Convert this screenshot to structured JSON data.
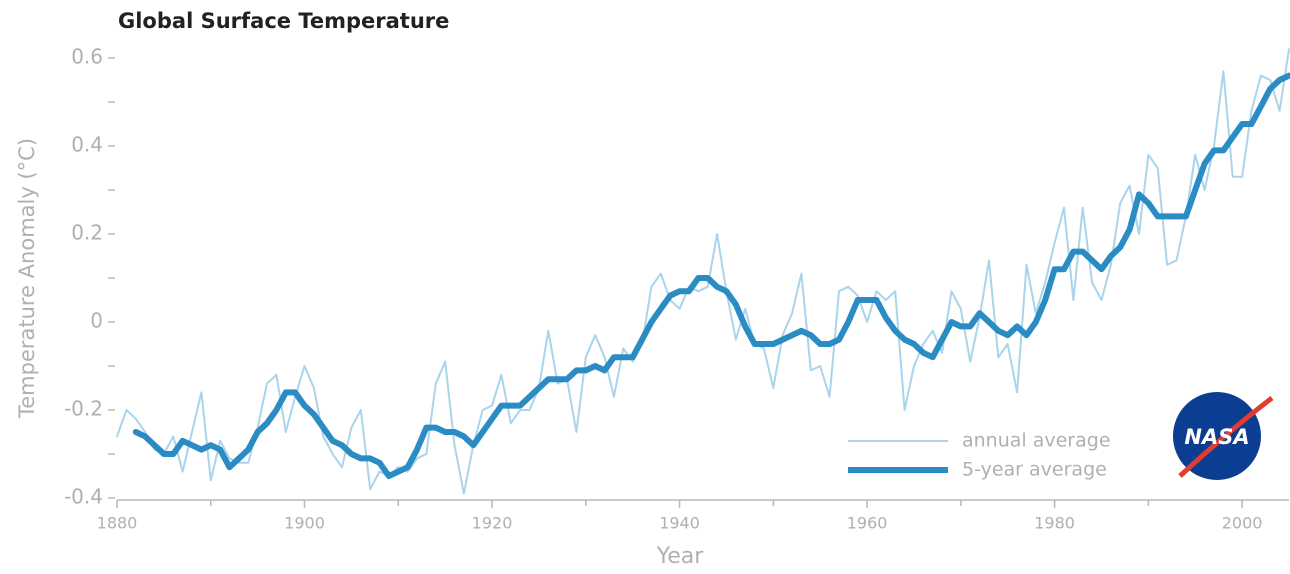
{
  "chart_data": {
    "type": "line",
    "title": "Global Surface Temperature",
    "xlabel": "Year",
    "ylabel": "Temperature Anomaly (°C)",
    "logo": "NASA",
    "xlim": [
      1880,
      2005
    ],
    "ylim": [
      -0.4,
      0.6
    ],
    "xticks": [
      1880,
      1900,
      1920,
      1940,
      1960,
      1980,
      2000
    ],
    "xticks_minor": [
      1890,
      1910,
      1930,
      1950,
      1970,
      1990
    ],
    "yticks": [
      -0.4,
      -0.2,
      0,
      0.2,
      0.4,
      0.6
    ],
    "yticks_minor": [
      -0.3,
      -0.1,
      0.1,
      0.3,
      0.5
    ],
    "legend": "lower right",
    "x": [
      1880,
      1881,
      1882,
      1883,
      1884,
      1885,
      1886,
      1887,
      1888,
      1889,
      1890,
      1891,
      1892,
      1893,
      1894,
      1895,
      1896,
      1897,
      1898,
      1899,
      1900,
      1901,
      1902,
      1903,
      1904,
      1905,
      1906,
      1907,
      1908,
      1909,
      1910,
      1911,
      1912,
      1913,
      1914,
      1915,
      1916,
      1917,
      1918,
      1919,
      1920,
      1921,
      1922,
      1923,
      1924,
      1925,
      1926,
      1927,
      1928,
      1929,
      1930,
      1931,
      1932,
      1933,
      1934,
      1935,
      1936,
      1937,
      1938,
      1939,
      1940,
      1941,
      1942,
      1943,
      1944,
      1945,
      1946,
      1947,
      1948,
      1949,
      1950,
      1951,
      1952,
      1953,
      1954,
      1955,
      1956,
      1957,
      1958,
      1959,
      1960,
      1961,
      1962,
      1963,
      1964,
      1965,
      1966,
      1967,
      1968,
      1969,
      1970,
      1971,
      1972,
      1973,
      1974,
      1975,
      1976,
      1977,
      1978,
      1979,
      1980,
      1981,
      1982,
      1983,
      1984,
      1985,
      1986,
      1987,
      1988,
      1989,
      1990,
      1991,
      1992,
      1993,
      1994,
      1995,
      1996,
      1997,
      1998,
      1999,
      2000,
      2001,
      2002,
      2003,
      2004,
      2005
    ],
    "series": [
      {
        "name": "annual average",
        "color": "#a9d4ec",
        "width": 2,
        "values": [
          -0.26,
          -0.2,
          -0.22,
          -0.25,
          -0.29,
          -0.3,
          -0.26,
          -0.34,
          -0.25,
          -0.16,
          -0.36,
          -0.27,
          -0.31,
          -0.32,
          -0.32,
          -0.24,
          -0.14,
          -0.12,
          -0.25,
          -0.17,
          -0.1,
          -0.15,
          -0.26,
          -0.3,
          -0.33,
          -0.24,
          -0.2,
          -0.38,
          -0.34,
          -0.35,
          -0.33,
          -0.34,
          -0.31,
          -0.3,
          -0.14,
          -0.09,
          -0.28,
          -0.39,
          -0.28,
          -0.2,
          -0.19,
          -0.12,
          -0.23,
          -0.2,
          -0.2,
          -0.15,
          -0.02,
          -0.14,
          -0.13,
          -0.25,
          -0.08,
          -0.03,
          -0.08,
          -0.17,
          -0.06,
          -0.09,
          -0.05,
          0.08,
          0.11,
          0.05,
          0.03,
          0.08,
          0.07,
          0.08,
          0.2,
          0.07,
          -0.04,
          0.03,
          -0.05,
          -0.06,
          -0.15,
          -0.03,
          0.02,
          0.11,
          -0.11,
          -0.1,
          -0.17,
          0.07,
          0.08,
          0.06,
          0.0,
          0.07,
          0.05,
          0.07,
          -0.2,
          -0.1,
          -0.05,
          -0.02,
          -0.07,
          0.07,
          0.03,
          -0.09,
          0.01,
          0.14,
          -0.08,
          -0.05,
          -0.16,
          0.13,
          0.02,
          0.09,
          0.18,
          0.26,
          0.05,
          0.26,
          0.09,
          0.05,
          0.13,
          0.27,
          0.31,
          0.2,
          0.38,
          0.35,
          0.13,
          0.14,
          0.24,
          0.38,
          0.3,
          0.4,
          0.57,
          0.33,
          0.33,
          0.48,
          0.56,
          0.55,
          0.48,
          0.62
        ]
      },
      {
        "name": "5-year average",
        "color": "#2b8cc4",
        "width": 6,
        "values": [
          null,
          null,
          -0.25,
          -0.26,
          -0.28,
          -0.3,
          -0.3,
          -0.27,
          -0.28,
          -0.29,
          -0.28,
          -0.29,
          -0.33,
          -0.31,
          -0.29,
          -0.25,
          -0.23,
          -0.2,
          -0.16,
          -0.16,
          -0.19,
          -0.21,
          -0.24,
          -0.27,
          -0.28,
          -0.3,
          -0.31,
          -0.31,
          -0.32,
          -0.35,
          -0.34,
          -0.33,
          -0.29,
          -0.24,
          -0.24,
          -0.25,
          -0.25,
          -0.26,
          -0.28,
          -0.25,
          -0.22,
          -0.19,
          -0.19,
          -0.19,
          -0.17,
          -0.15,
          -0.13,
          -0.13,
          -0.13,
          -0.11,
          -0.11,
          -0.1,
          -0.11,
          -0.08,
          -0.08,
          -0.08,
          -0.04,
          0.0,
          0.03,
          0.06,
          0.07,
          0.07,
          0.1,
          0.1,
          0.08,
          0.07,
          0.04,
          -0.01,
          -0.05,
          -0.05,
          -0.05,
          -0.04,
          -0.03,
          -0.02,
          -0.03,
          -0.05,
          -0.05,
          -0.04,
          0.0,
          0.05,
          0.05,
          0.05,
          0.01,
          -0.02,
          -0.04,
          -0.05,
          -0.07,
          -0.08,
          -0.04,
          0.0,
          -0.01,
          -0.01,
          0.02,
          0.0,
          -0.02,
          -0.03,
          -0.01,
          -0.03,
          0.0,
          0.05,
          0.12,
          0.12,
          0.16,
          0.16,
          0.14,
          0.12,
          0.15,
          0.17,
          0.21,
          0.29,
          0.27,
          0.24,
          0.24,
          0.24,
          0.24,
          0.3,
          0.36,
          0.39,
          0.39,
          0.42,
          0.45,
          0.45,
          0.49,
          0.53,
          0.55,
          0.56
        ]
      }
    ]
  }
}
